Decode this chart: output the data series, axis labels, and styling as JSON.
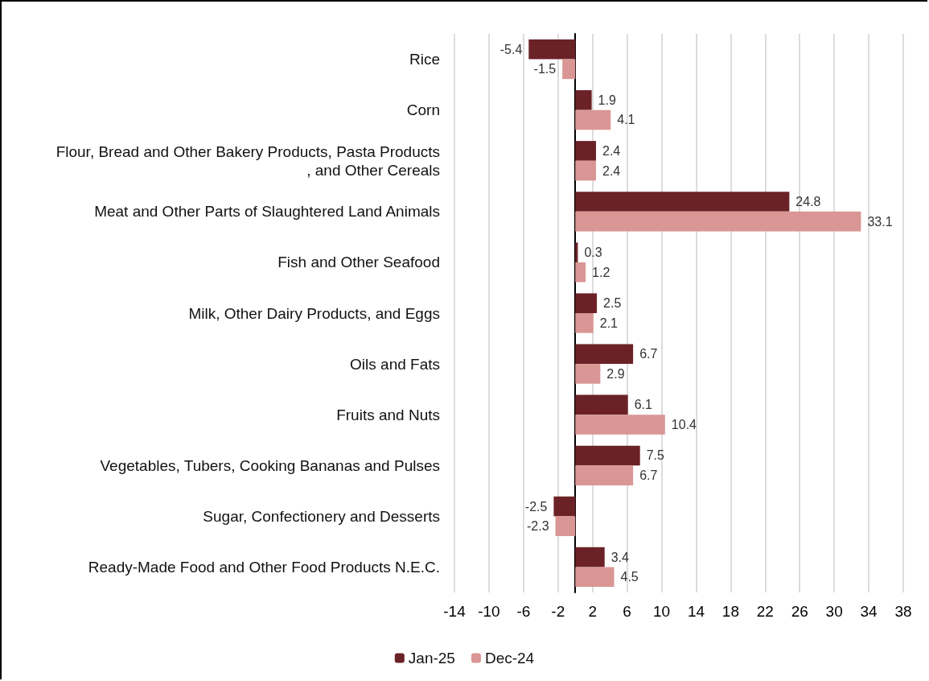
{
  "chart_data": {
    "type": "bar",
    "orientation": "horizontal",
    "categories": [
      "Rice",
      "Corn",
      "Flour, Bread and Other Bakery Products, Pasta Products, and Other Cereals",
      "Meat and Other Parts of Slaughtered Land Animals",
      "Fish and Other Seafood",
      "Milk, Other Dairy Products, and Eggs",
      "Oils and Fats",
      "Fruits and Nuts",
      "Vegetables, Tubers, Cooking Bananas and Pulses",
      "Sugar, Confectionery and Desserts",
      "Ready-Made Food and Other Food Products N.E.C."
    ],
    "series": [
      {
        "name": "Jan-25",
        "color": "#6b2226",
        "values": [
          -5.4,
          1.9,
          2.4,
          24.8,
          0.3,
          2.5,
          6.7,
          6.1,
          7.5,
          -2.5,
          3.4
        ]
      },
      {
        "name": "Dec-24",
        "color": "#d99694",
        "values": [
          -1.5,
          4.1,
          2.4,
          33.1,
          1.2,
          2.1,
          2.9,
          10.4,
          6.7,
          -2.3,
          4.5
        ]
      }
    ],
    "xlim": [
      -14,
      38
    ],
    "xticks": [
      -14,
      -10,
      -6,
      -2,
      2,
      6,
      10,
      14,
      18,
      22,
      26,
      30,
      34,
      38
    ],
    "grid": "x",
    "legend": "bottom",
    "data_labels": true
  }
}
